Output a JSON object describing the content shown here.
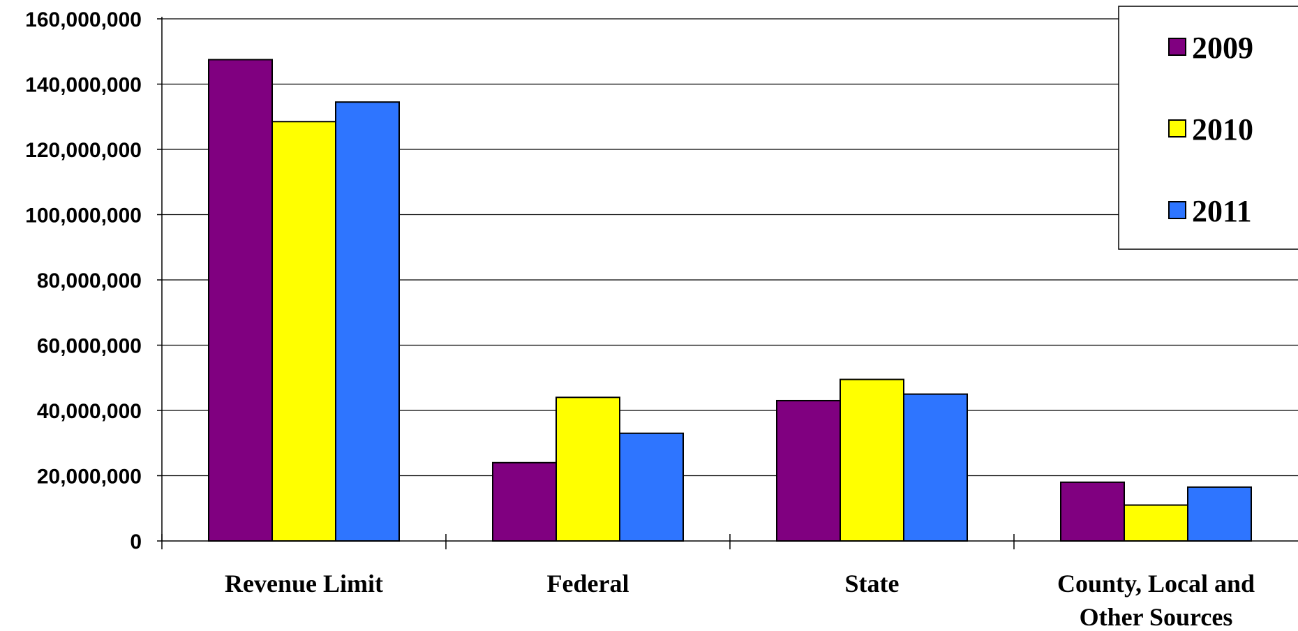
{
  "chart_data": {
    "type": "bar",
    "categories": [
      [
        "Revenue Limit"
      ],
      [
        "Federal"
      ],
      [
        "State"
      ],
      [
        "County, Local and",
        "Other Sources"
      ]
    ],
    "series": [
      {
        "name": "2009",
        "color": "#800080",
        "values": [
          147500000,
          24000000,
          43000000,
          18000000
        ]
      },
      {
        "name": "2010",
        "color": "#FFFF00",
        "values": [
          128500000,
          44000000,
          49500000,
          11000000
        ]
      },
      {
        "name": "2011",
        "color": "#2E75FF",
        "values": [
          134500000,
          33000000,
          45000000,
          16500000
        ]
      }
    ],
    "ylim": [
      0,
      160000000
    ],
    "yticks": [
      0,
      20000000,
      40000000,
      60000000,
      80000000,
      100000000,
      120000000,
      140000000,
      160000000
    ],
    "ytick_labels": [
      "0",
      "20,000,000",
      "40,000,000",
      "60,000,000",
      "80,000,000",
      "100,000,000",
      "120,000,000",
      "140,000,000",
      "160,000,000"
    ],
    "grid": true,
    "legend": "top-right",
    "title": "",
    "xlabel": "",
    "ylabel": ""
  }
}
